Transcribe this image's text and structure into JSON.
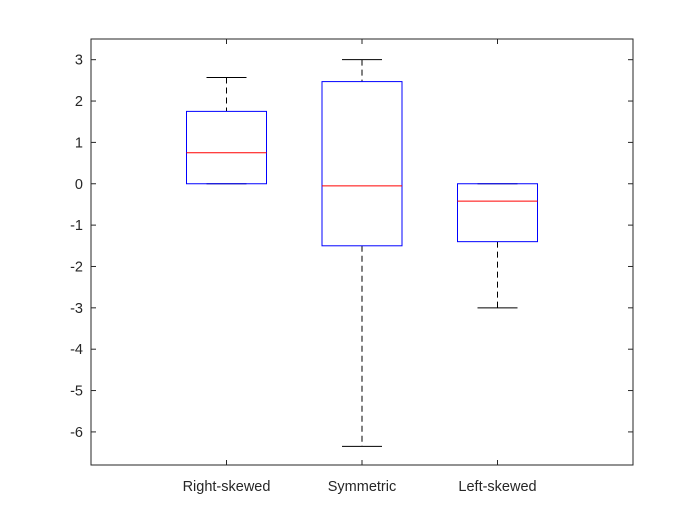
{
  "chart_data": {
    "type": "box",
    "categories": [
      "Right-skewed",
      "Symmetric",
      "Left-skewed"
    ],
    "boxes": [
      {
        "name": "Right-skewed",
        "whisker_low": 0.0,
        "q1": 0.0,
        "median": 0.75,
        "q3": 1.75,
        "whisker_high": 2.57
      },
      {
        "name": "Symmetric",
        "whisker_low": -6.35,
        "q1": -1.5,
        "median": -0.05,
        "q3": 2.47,
        "whisker_high": 3.0
      },
      {
        "name": "Left-skewed",
        "whisker_low": -3.0,
        "q1": -1.4,
        "median": -0.42,
        "q3": 0.0,
        "whisker_high": 0.0
      }
    ],
    "ylim": [
      -6.8,
      3.5
    ],
    "yticks": [
      3,
      2,
      1,
      0,
      -1,
      -2,
      -3,
      -4,
      -5,
      -6
    ],
    "ytick_labels": [
      "3",
      "2",
      "1",
      "0",
      "-1",
      "-2",
      "-3",
      "-4",
      "-5",
      "-6"
    ],
    "grid": false,
    "colors": {
      "box": "#0000ff",
      "median": "#ff0000",
      "whisker": "#000000",
      "axis": "#262626"
    }
  }
}
